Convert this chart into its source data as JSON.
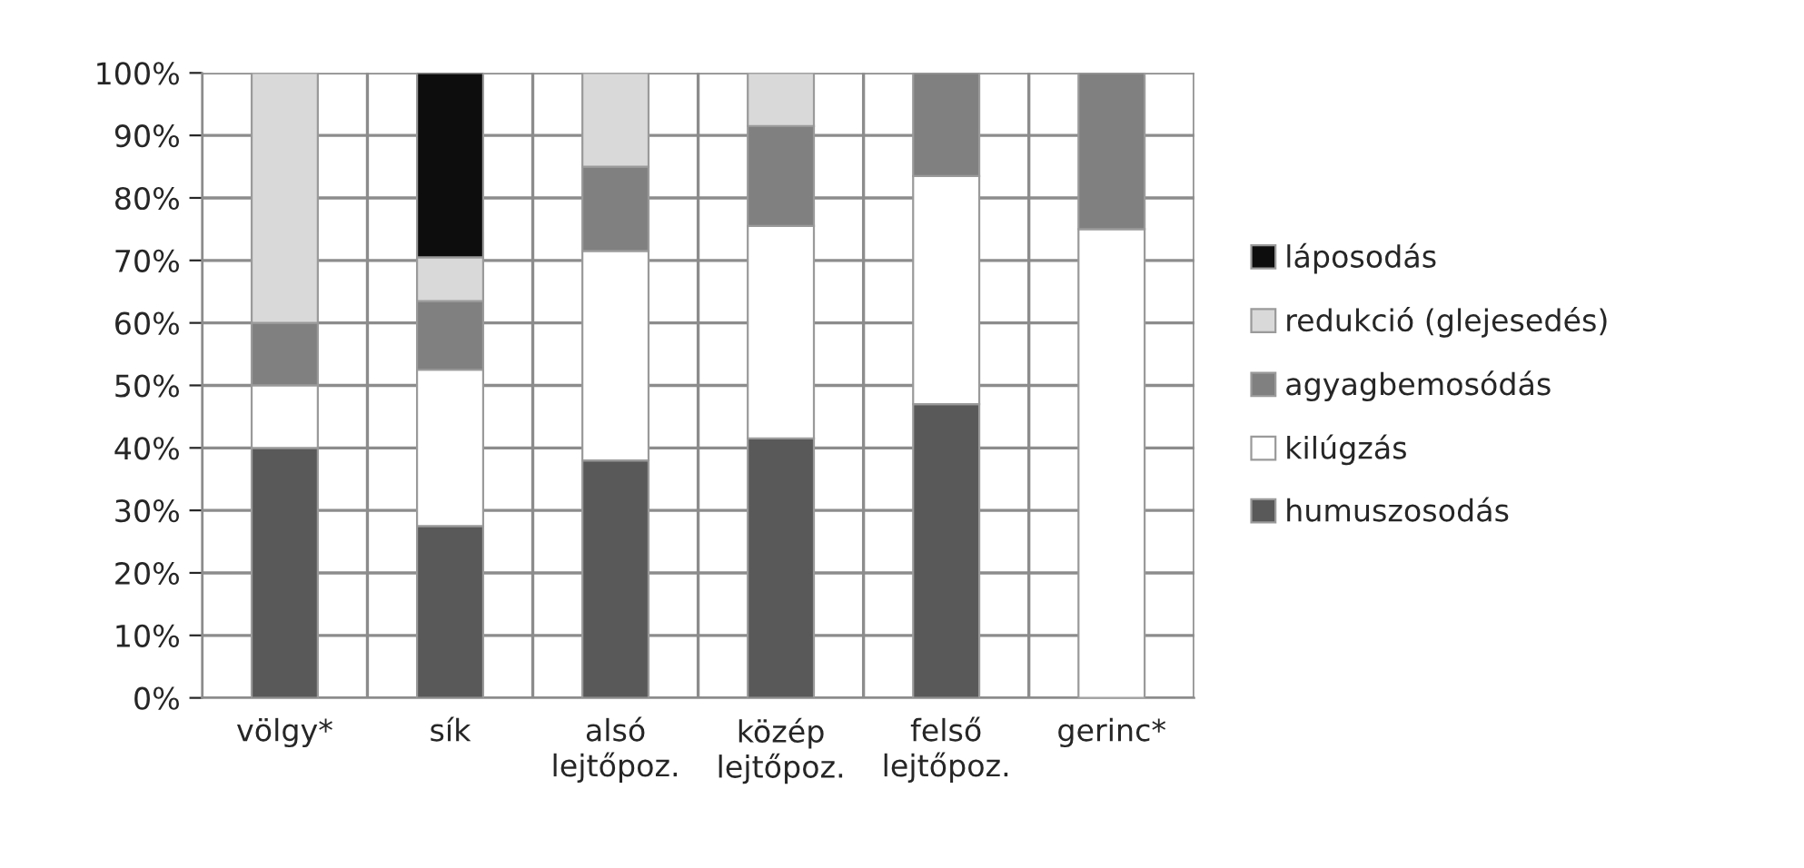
{
  "chart_data": {
    "type": "bar",
    "stacked": true,
    "categories": [
      "völgy*",
      "sík",
      "alsó lejtőpoz.",
      "közép lejtőpoz.",
      "felső lejtőpoz.",
      "gerinc*"
    ],
    "series": [
      {
        "name": "humuszosodás",
        "color": "#595959",
        "values": [
          40,
          27.5,
          38,
          41.5,
          47,
          null
        ]
      },
      {
        "name": "kilúgzás",
        "color": "#ffffff",
        "values": [
          10,
          25,
          33.5,
          34,
          36.5,
          75
        ]
      },
      {
        "name": "agyagbemosódás",
        "color": "#808080",
        "values": [
          10,
          11,
          13.5,
          16,
          16.5,
          25
        ]
      },
      {
        "name": "redukció (glejesedés)",
        "color": "#d9d9d9",
        "values": [
          40,
          7,
          15,
          8.5,
          null,
          null
        ]
      },
      {
        "name": "láposodás",
        "color": "#0d0d0d",
        "values": [
          null,
          29.5,
          null,
          null,
          null,
          null
        ]
      }
    ],
    "ylim": [
      0,
      100
    ],
    "yticks": [
      {
        "value": 0,
        "label": "0%"
      },
      {
        "value": 10,
        "label": "10%"
      },
      {
        "value": 20,
        "label": "20%"
      },
      {
        "value": 30,
        "label": "30%"
      },
      {
        "value": 40,
        "label": "40%"
      },
      {
        "value": 50,
        "label": "50%"
      },
      {
        "value": 60,
        "label": "60%"
      },
      {
        "value": 70,
        "label": "70%"
      },
      {
        "value": 80,
        "label": "80%"
      },
      {
        "value": 90,
        "label": "90%"
      },
      {
        "value": 100,
        "label": "100%"
      }
    ],
    "grid": true,
    "legend": "right"
  }
}
